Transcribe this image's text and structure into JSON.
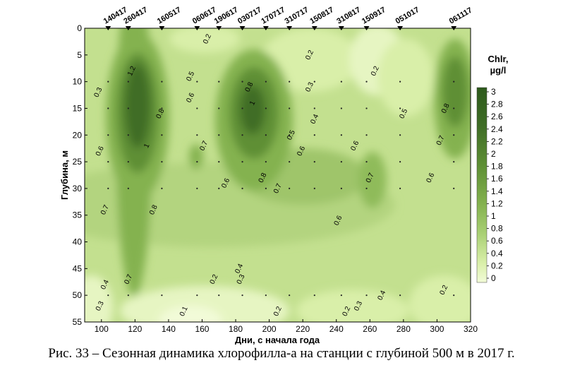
{
  "chart_data": {
    "type": "heatmap",
    "title": "",
    "xlabel": "Дни, с начала года",
    "ylabel": "Глубина, м",
    "xlim": [
      90,
      320
    ],
    "ylim": [
      0,
      55
    ],
    "x_ticks": [
      100,
      120,
      140,
      160,
      180,
      200,
      220,
      240,
      260,
      280,
      300,
      320
    ],
    "y_ticks": [
      0,
      5,
      10,
      15,
      20,
      25,
      30,
      35,
      40,
      45,
      50,
      55
    ],
    "colorbar": {
      "title_line1": "Chlr,",
      "title_line2": "µg/l",
      "range": [
        0,
        3
      ],
      "ticks": [
        "3",
        "2.8",
        "2.6",
        "2.4",
        "2.2",
        "2",
        "1.8",
        "1.6",
        "1.4",
        "1.2",
        "1",
        "0.8",
        "0.6",
        "0.4",
        "0.2",
        "0"
      ],
      "color_low": "#f2fbd8",
      "color_high": "#2d5a1c"
    },
    "stations": [
      {
        "label": "140417",
        "day": 104
      },
      {
        "label": "260417",
        "day": 116
      },
      {
        "label": "160517",
        "day": 136
      },
      {
        "label": "060617",
        "day": 157
      },
      {
        "label": "190617",
        "day": 170
      },
      {
        "label": "030717",
        "day": 184
      },
      {
        "label": "170717",
        "day": 198
      },
      {
        "label": "310717",
        "day": 212
      },
      {
        "label": "150817",
        "day": 227
      },
      {
        "label": "310817",
        "day": 243
      },
      {
        "label": "150917",
        "day": 258
      },
      {
        "label": "051017",
        "day": 278
      },
      {
        "label": "061117",
        "day": 310
      }
    ],
    "contour_labels": [
      {
        "text": "0.3",
        "day": 98,
        "depth": 12
      },
      {
        "text": "0.6",
        "day": 99,
        "depth": 23
      },
      {
        "text": "0.7",
        "day": 102,
        "depth": 34
      },
      {
        "text": "0.4",
        "day": 102,
        "depth": 48
      },
      {
        "text": "0.3",
        "day": 99,
        "depth": 52
      },
      {
        "text": "1.2",
        "day": 118,
        "depth": 8
      },
      {
        "text": "1",
        "day": 127,
        "depth": 22
      },
      {
        "text": "0.8",
        "day": 135,
        "depth": 16
      },
      {
        "text": "0.8",
        "day": 131,
        "depth": 34
      },
      {
        "text": "0.7",
        "day": 116,
        "depth": 47
      },
      {
        "text": "0.2",
        "day": 163,
        "depth": 2
      },
      {
        "text": "0.5",
        "day": 153,
        "depth": 9
      },
      {
        "text": "0.6",
        "day": 153,
        "depth": 13
      },
      {
        "text": "0.7",
        "day": 161,
        "depth": 22
      },
      {
        "text": "0.6",
        "day": 174,
        "depth": 29
      },
      {
        "text": "0.8",
        "day": 188,
        "depth": 11
      },
      {
        "text": "1",
        "day": 190,
        "depth": 14
      },
      {
        "text": "0.2",
        "day": 167,
        "depth": 47
      },
      {
        "text": "0.4",
        "day": 182,
        "depth": 45
      },
      {
        "text": "0.3",
        "day": 183,
        "depth": 47
      },
      {
        "text": "0.1",
        "day": 149,
        "depth": 53
      },
      {
        "text": "0.8",
        "day": 196,
        "depth": 28
      },
      {
        "text": "0.7",
        "day": 205,
        "depth": 30
      },
      {
        "text": "0.5",
        "day": 213,
        "depth": 20
      },
      {
        "text": "0.6",
        "day": 219,
        "depth": 23
      },
      {
        "text": "0.2",
        "day": 205,
        "depth": 53
      },
      {
        "text": "0.2",
        "day": 224,
        "depth": 5
      },
      {
        "text": "0.3",
        "day": 224,
        "depth": 11
      },
      {
        "text": "0.4",
        "day": 227,
        "depth": 17
      },
      {
        "text": "0.6",
        "day": 251,
        "depth": 22
      },
      {
        "text": "0.6",
        "day": 241,
        "depth": 36
      },
      {
        "text": "0.7",
        "day": 260,
        "depth": 28
      },
      {
        "text": "0.2",
        "day": 246,
        "depth": 53
      },
      {
        "text": "0.3",
        "day": 253,
        "depth": 52
      },
      {
        "text": "0.4",
        "day": 267,
        "depth": 50
      },
      {
        "text": "0.2",
        "day": 263,
        "depth": 8
      },
      {
        "text": "0.5",
        "day": 280,
        "depth": 16
      },
      {
        "text": "0.8",
        "day": 305,
        "depth": 15
      },
      {
        "text": "0.7",
        "day": 302,
        "depth": 21
      },
      {
        "text": "0.6",
        "day": 296,
        "depth": 28
      },
      {
        "text": "0.2",
        "day": 304,
        "depth": 49
      }
    ]
  },
  "caption": "Рис. 33 – Сезонная динамика хлорофилла-а на станции с глубиной 500 м в 2017 г."
}
